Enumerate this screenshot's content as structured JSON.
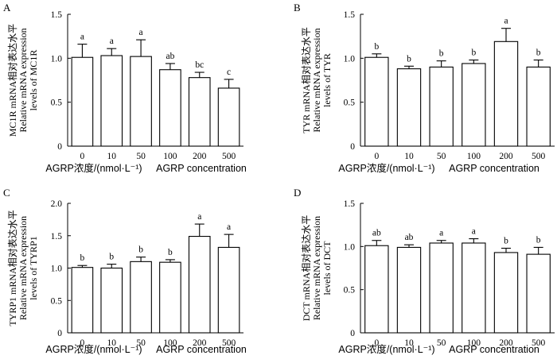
{
  "chart_data": [
    {
      "panel": "A",
      "type": "bar",
      "categories": [
        "0",
        "10",
        "50",
        "100",
        "200",
        "500"
      ],
      "values": [
        1.01,
        1.03,
        1.02,
        0.87,
        0.78,
        0.66
      ],
      "errors": [
        0.15,
        0.08,
        0.19,
        0.07,
        0.06,
        0.1
      ],
      "significance": [
        "a",
        "a",
        "a",
        "ab",
        "bc",
        "c"
      ],
      "ylabel": [
        "MC1R mRNA相对表达水平",
        "Relative mRNA expression",
        "levels of MC1R"
      ],
      "xlabel_cn": "AGRP浓度/(nmol·L⁻¹)",
      "xlabel_en": "AGRP concentration",
      "ylim": [
        0,
        1.5
      ],
      "yticks": [
        "0",
        "0.5",
        "1.0",
        "1.5"
      ]
    },
    {
      "panel": "B",
      "type": "bar",
      "categories": [
        "0",
        "10",
        "50",
        "100",
        "200",
        "500"
      ],
      "values": [
        1.01,
        0.88,
        0.9,
        0.94,
        1.19,
        0.9
      ],
      "errors": [
        0.04,
        0.03,
        0.07,
        0.04,
        0.15,
        0.08
      ],
      "significance": [
        "b",
        "b",
        "b",
        "b",
        "a",
        "b"
      ],
      "ylabel": [
        "TYR mRNA相对表达水平",
        "Relative mRNA expression",
        "levels of TYR"
      ],
      "xlabel_cn": "AGRP浓度/(nmol·L⁻¹)",
      "xlabel_en": "AGRP concentration",
      "ylim": [
        0,
        1.5
      ],
      "yticks": [
        "0",
        "0.5",
        "1.0",
        "1.5"
      ]
    },
    {
      "panel": "C",
      "type": "bar",
      "categories": [
        "0",
        "10",
        "50",
        "100",
        "200",
        "500"
      ],
      "values": [
        1.01,
        1.0,
        1.1,
        1.09,
        1.49,
        1.32
      ],
      "errors": [
        0.03,
        0.06,
        0.07,
        0.04,
        0.19,
        0.2
      ],
      "significance": [
        "b",
        "b",
        "b",
        "b",
        "a",
        "a"
      ],
      "ylabel": [
        "TYRP1 mRNA相对表达水平",
        "Relative mRNA expression",
        "levels of TYRP1"
      ],
      "xlabel_cn": "AGRP浓度/(nmol·L⁻¹)",
      "xlabel_en": "AGRP concentration",
      "ylim": [
        0,
        2.0
      ],
      "yticks": [
        "0",
        "0.5",
        "1.0",
        "1.5",
        "2.0"
      ]
    },
    {
      "panel": "D",
      "type": "bar",
      "categories": [
        "0",
        "10",
        "50",
        "100",
        "200",
        "500"
      ],
      "values": [
        1.01,
        0.99,
        1.04,
        1.04,
        0.93,
        0.91
      ],
      "errors": [
        0.06,
        0.03,
        0.03,
        0.05,
        0.05,
        0.08
      ],
      "significance": [
        "ab",
        "ab",
        "a",
        "a",
        "b",
        "b"
      ],
      "ylabel": [
        "DCT mRNA相对表达水平",
        "Relative mRNA expression",
        "levels of DCT"
      ],
      "xlabel_cn": "AGRP浓度/(nmol·L⁻¹)",
      "xlabel_en": "AGRP concentration",
      "ylim": [
        0,
        1.5
      ],
      "yticks": [
        "0",
        "0.5",
        "1.0",
        "1.5"
      ]
    }
  ]
}
